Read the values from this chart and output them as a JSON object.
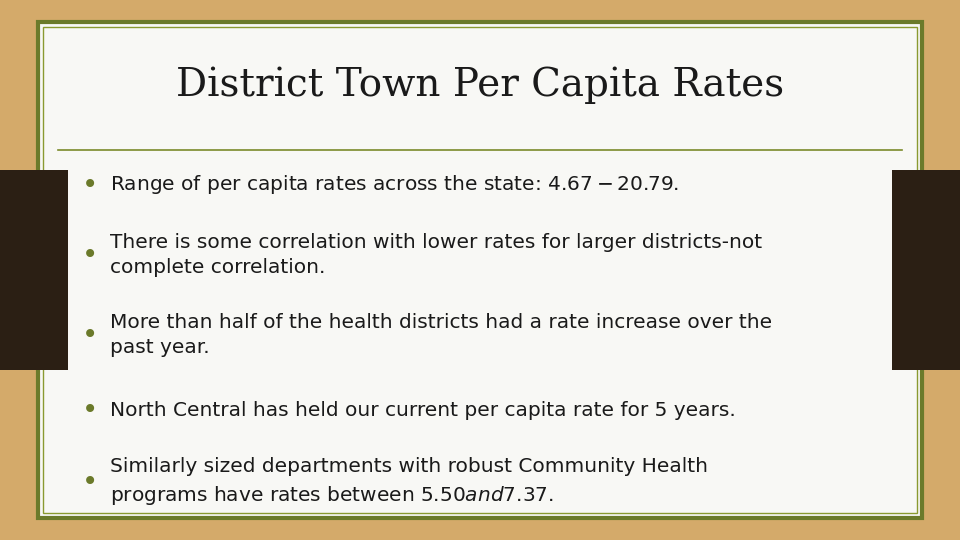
{
  "title": "District Town Per Capita Rates",
  "title_fontsize": 28,
  "title_color": "#1a1a1a",
  "background_outer": "#d4aa6a",
  "background_card": "#f8f8f5",
  "border_color_outer": "#6b7a2a",
  "border_color_inner": "#8a9a30",
  "bullet_color": "#6b7a2a",
  "text_color": "#1a1a1a",
  "sidebar_color": "#2b1f14",
  "divider_color": "#7a8a2a",
  "bullet_points": [
    "Range of per capita rates across the state: $4.67-$20.79.",
    "There is some correlation with lower rates for larger districts-not\ncomplete correlation.",
    "More than half of the health districts had a rate increase over the\npast year.",
    "North Central has held our current per capita rate for 5 years.",
    "Similarly sized departments with robust Community Health\nprograms have rates between $5.50 and $7.37."
  ],
  "text_fontsize": 14.5,
  "bullet_fontsize": 16
}
